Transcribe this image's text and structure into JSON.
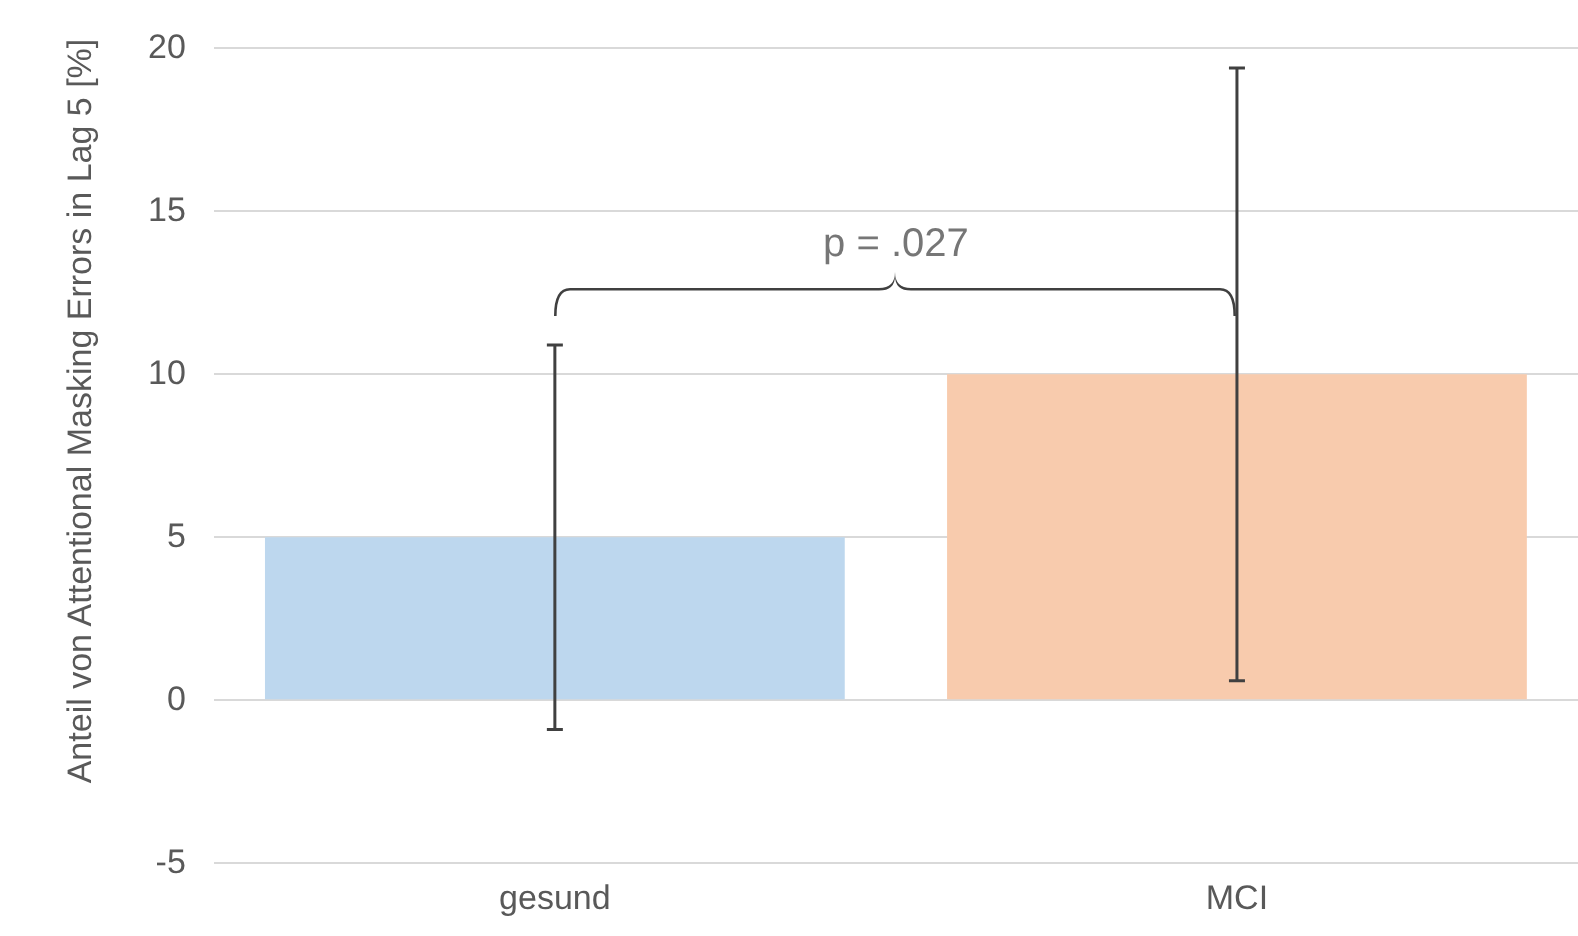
{
  "chart_data": {
    "type": "bar",
    "ylabel": "Anteil von Attentional Masking Errors in Lag 5 [%]",
    "categories": [
      "gesund",
      "MCI"
    ],
    "values": [
      5,
      10
    ],
    "colors": [
      "#bdd7ee",
      "#f8cbad"
    ],
    "errors": [
      5.9,
      9.4
    ],
    "ylim": [
      -5,
      20
    ],
    "yticks": [
      -5,
      0,
      5,
      10,
      15,
      20
    ],
    "grid": "y",
    "annotations": [
      "p = .027"
    ]
  }
}
